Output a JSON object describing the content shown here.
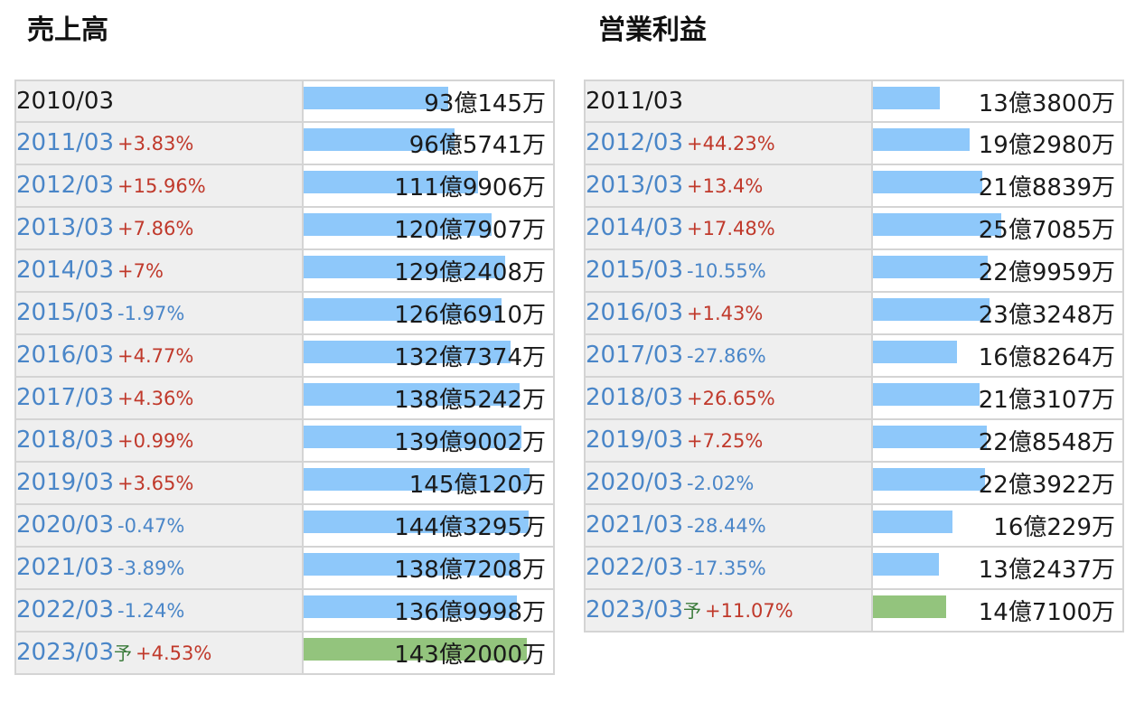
{
  "chart_data": [
    {
      "type": "table",
      "title": "売上高",
      "unit": "円",
      "rows": [
        {
          "year": "2010/03",
          "change": "",
          "forecast_mark": "",
          "value": "93億145万",
          "value_oku": 93.0145
        },
        {
          "year": "2011/03",
          "change": "+3.83%",
          "forecast_mark": "",
          "value": "96億5741万",
          "value_oku": 96.5741
        },
        {
          "year": "2012/03",
          "change": "+15.96%",
          "forecast_mark": "",
          "value": "111億9906万",
          "value_oku": 111.9906
        },
        {
          "year": "2013/03",
          "change": "+7.86%",
          "forecast_mark": "",
          "value": "120億7907万",
          "value_oku": 120.7907
        },
        {
          "year": "2014/03",
          "change": "+7%",
          "forecast_mark": "",
          "value": "129億2408万",
          "value_oku": 129.2408
        },
        {
          "year": "2015/03",
          "change": "-1.97%",
          "forecast_mark": "",
          "value": "126億6910万",
          "value_oku": 126.691
        },
        {
          "year": "2016/03",
          "change": "+4.77%",
          "forecast_mark": "",
          "value": "132億7374万",
          "value_oku": 132.7374
        },
        {
          "year": "2017/03",
          "change": "+4.36%",
          "forecast_mark": "",
          "value": "138億5242万",
          "value_oku": 138.5242
        },
        {
          "year": "2018/03",
          "change": "+0.99%",
          "forecast_mark": "",
          "value": "139億9002万",
          "value_oku": 139.9002
        },
        {
          "year": "2019/03",
          "change": "+3.65%",
          "forecast_mark": "",
          "value": "145億120万",
          "value_oku": 145.012
        },
        {
          "year": "2020/03",
          "change": "-0.47%",
          "forecast_mark": "",
          "value": "144億3295万",
          "value_oku": 144.3295
        },
        {
          "year": "2021/03",
          "change": "-3.89%",
          "forecast_mark": "",
          "value": "138億7208万",
          "value_oku": 138.7208
        },
        {
          "year": "2022/03",
          "change": "-1.24%",
          "forecast_mark": "",
          "value": "136億9998万",
          "value_oku": 136.9998
        },
        {
          "year": "2023/03",
          "change": "+4.53%",
          "forecast_mark": "予",
          "value": "143億2000万",
          "value_oku": 143.2
        }
      ]
    },
    {
      "type": "table",
      "title": "営業利益",
      "unit": "円",
      "rows": [
        {
          "year": "2011/03",
          "change": "",
          "forecast_mark": "",
          "value": "13億3800万",
          "value_oku": 13.38
        },
        {
          "year": "2012/03",
          "change": "+44.23%",
          "forecast_mark": "",
          "value": "19億2980万",
          "value_oku": 19.298
        },
        {
          "year": "2013/03",
          "change": "+13.4%",
          "forecast_mark": "",
          "value": "21億8839万",
          "value_oku": 21.8839
        },
        {
          "year": "2014/03",
          "change": "+17.48%",
          "forecast_mark": "",
          "value": "25億7085万",
          "value_oku": 25.7085
        },
        {
          "year": "2015/03",
          "change": "-10.55%",
          "forecast_mark": "",
          "value": "22億9959万",
          "value_oku": 22.9959
        },
        {
          "year": "2016/03",
          "change": "+1.43%",
          "forecast_mark": "",
          "value": "23億3248万",
          "value_oku": 23.3248
        },
        {
          "year": "2017/03",
          "change": "-27.86%",
          "forecast_mark": "",
          "value": "16億8264万",
          "value_oku": 16.8264
        },
        {
          "year": "2018/03",
          "change": "+26.65%",
          "forecast_mark": "",
          "value": "21億3107万",
          "value_oku": 21.3107
        },
        {
          "year": "2019/03",
          "change": "+7.25%",
          "forecast_mark": "",
          "value": "22億8548万",
          "value_oku": 22.8548
        },
        {
          "year": "2020/03",
          "change": "-2.02%",
          "forecast_mark": "",
          "value": "22億3922万",
          "value_oku": 22.3922
        },
        {
          "year": "2021/03",
          "change": "-28.44%",
          "forecast_mark": "",
          "value": "16億229万",
          "value_oku": 16.0229
        },
        {
          "year": "2022/03",
          "change": "-17.35%",
          "forecast_mark": "",
          "value": "13億2437万",
          "value_oku": 13.2437
        },
        {
          "year": "2023/03",
          "change": "+11.07%",
          "forecast_mark": "予",
          "value": "14億7100万",
          "value_oku": 14.71
        }
      ]
    }
  ],
  "colors": {
    "bar": "#8ec8fa",
    "forecast_bar": "#93c47d",
    "positive_change": "#c0392b",
    "negative_change": "#4a86c8",
    "year_link": "#4a86c8",
    "forecast_mark": "#3a7a3a"
  }
}
